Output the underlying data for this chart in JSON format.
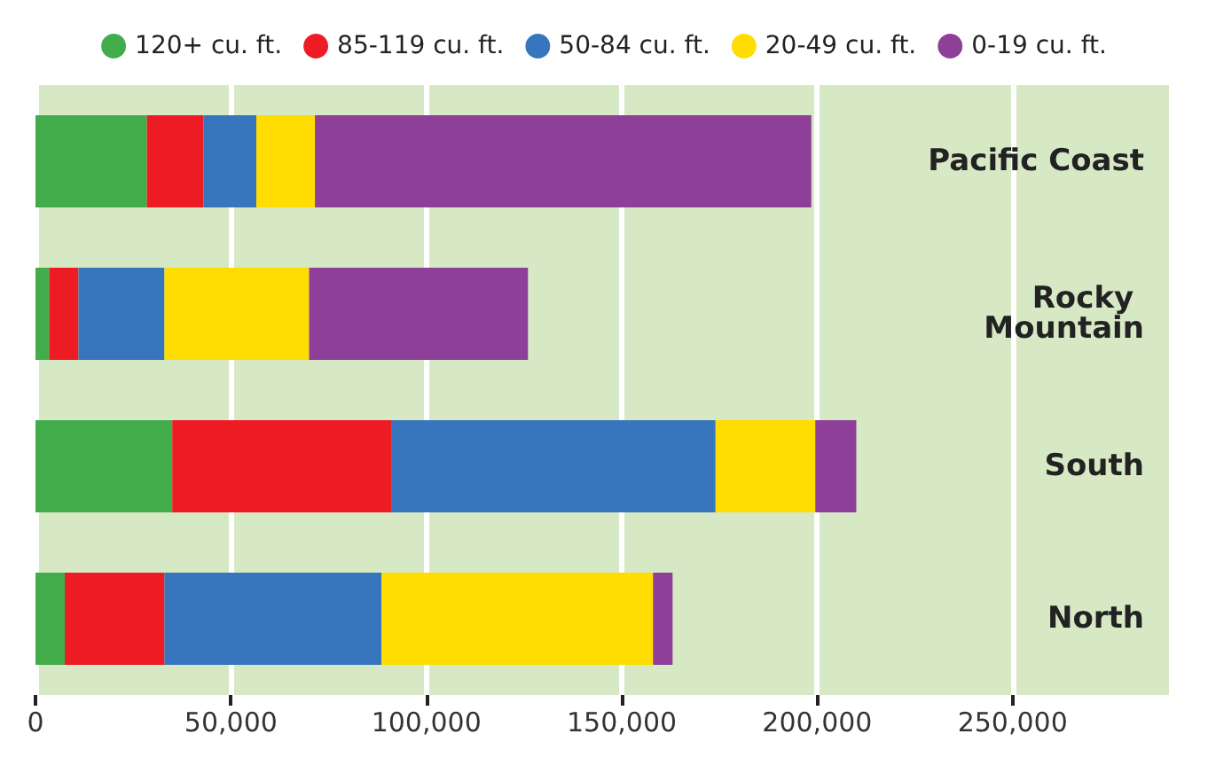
{
  "chart_data": {
    "type": "bar",
    "orientation": "horizontal",
    "stacked": true,
    "categories": [
      "Pacific Coast",
      "Rocky Mountain",
      "South",
      "North"
    ],
    "series": [
      {
        "name": "120+ cu. ft.",
        "color": "#43ac4a",
        "values": [
          28500,
          3500,
          35000,
          7500
        ]
      },
      {
        "name": "85-119 cu. ft.",
        "color": "#ed1c24",
        "values": [
          14500,
          7500,
          56000,
          25500
        ]
      },
      {
        "name": "50-84 cu. ft.",
        "color": "#3775bc",
        "values": [
          13500,
          22000,
          83000,
          55500
        ]
      },
      {
        "name": "20-49 cu. ft.",
        "color": "#ffdd00",
        "values": [
          15000,
          37000,
          25500,
          69500
        ]
      },
      {
        "name": "0-19 cu. ft.",
        "color": "#8e3f97",
        "values": [
          127000,
          56000,
          10500,
          5000
        ]
      }
    ],
    "xlim": [
      0,
      290000
    ],
    "xticks": [
      0,
      {
        "value": 50000,
        "label": "50,000"
      },
      {
        "value": 100000,
        "label": "100,000"
      },
      {
        "value": 150000,
        "label": "150,000"
      },
      {
        "value": 200000,
        "label": "200,000"
      },
      {
        "value": 250000,
        "label": "250,000"
      }
    ],
    "grid": "x",
    "legend": "top"
  }
}
